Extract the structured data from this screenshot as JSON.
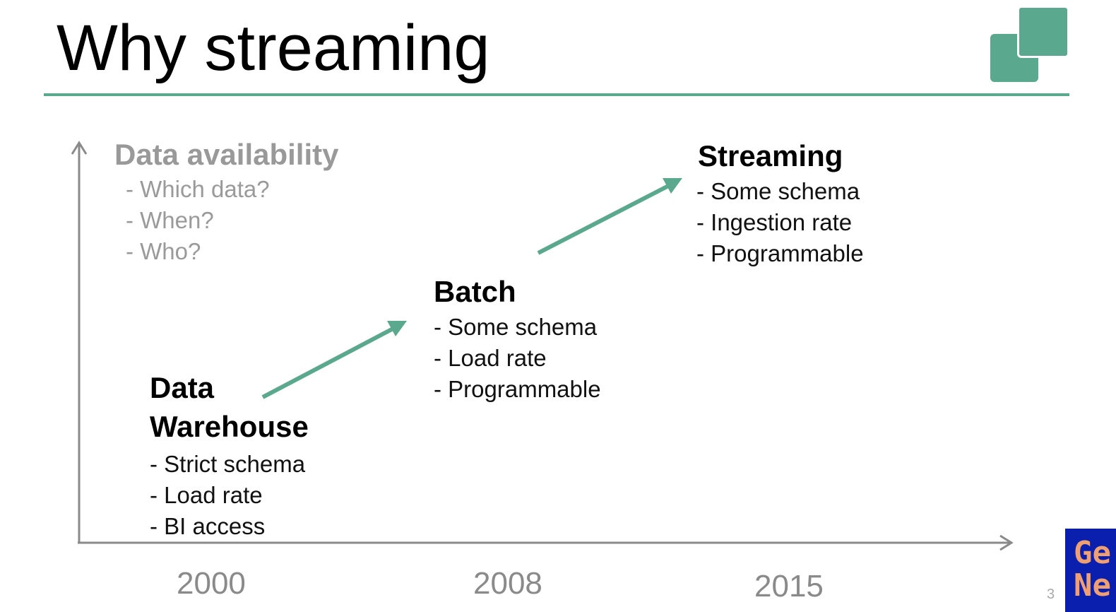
{
  "slide": {
    "title": "Why streaming",
    "page_number": "3",
    "accent_color": "#5aa88e"
  },
  "axis": {
    "y_label": "Data availability",
    "y_items": [
      "- Which data?",
      "- When?",
      "- Who?"
    ],
    "years": [
      "2000",
      "2008",
      "2015"
    ]
  },
  "stages": [
    {
      "heading_line1": "Data",
      "heading_line2": "Warehouse",
      "items": [
        "- Strict schema",
        "- Load rate",
        "- BI access"
      ]
    },
    {
      "heading": "Batch",
      "items": [
        "- Some schema",
        "- Load rate",
        "- Programmable"
      ]
    },
    {
      "heading": "Streaming",
      "items": [
        "- Some schema",
        "- Ingestion rate",
        "- Programmable"
      ]
    }
  ],
  "corner_badge": {
    "line1": "Ge",
    "line2": "Ne"
  }
}
